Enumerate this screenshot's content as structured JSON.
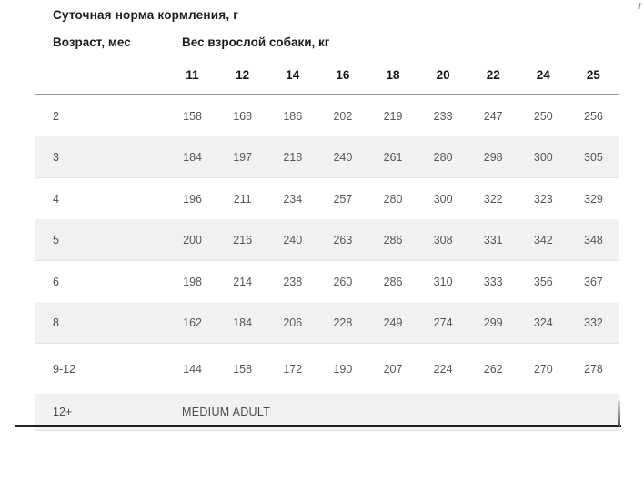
{
  "page": {
    "title": "Суточная норма кормления, г",
    "age_label": "Возраст, мес",
    "weight_label": "Вес взрослой собаки, кг"
  },
  "table": {
    "weight_columns": [
      "11",
      "12",
      "14",
      "16",
      "18",
      "20",
      "22",
      "24",
      "25"
    ],
    "rows": [
      {
        "age": "2",
        "values": [
          "158",
          "168",
          "186",
          "202",
          "219",
          "233",
          "247",
          "250",
          "256"
        ],
        "shaded": false
      },
      {
        "age": "3",
        "values": [
          "184",
          "197",
          "218",
          "240",
          "261",
          "280",
          "298",
          "300",
          "305"
        ],
        "shaded": true
      },
      {
        "age": "4",
        "values": [
          "196",
          "211",
          "234",
          "257",
          "280",
          "300",
          "322",
          "323",
          "329"
        ],
        "shaded": false
      },
      {
        "age": "5",
        "values": [
          "200",
          "216",
          "240",
          "263",
          "286",
          "308",
          "331",
          "342",
          "348"
        ],
        "shaded": true
      },
      {
        "age": "6",
        "values": [
          "198",
          "214",
          "238",
          "260",
          "286",
          "310",
          "333",
          "356",
          "367"
        ],
        "shaded": false
      },
      {
        "age": "8",
        "values": [
          "162",
          "184",
          "206",
          "228",
          "249",
          "274",
          "299",
          "324",
          "332"
        ],
        "shaded": true
      },
      {
        "age": "9-12",
        "values": [
          "144",
          "158",
          "172",
          "190",
          "207",
          "224",
          "262",
          "270",
          "278"
        ],
        "shaded": false
      },
      {
        "age": "12+",
        "note": "MEDIUM ADULT",
        "shaded": true
      }
    ]
  },
  "colors": {
    "shaded_row": "#f1f1f1",
    "header_rule": "#9c9c9c",
    "bottom_rule": "#232323",
    "title_text": "#1c1c1c",
    "data_text": "#565656"
  }
}
